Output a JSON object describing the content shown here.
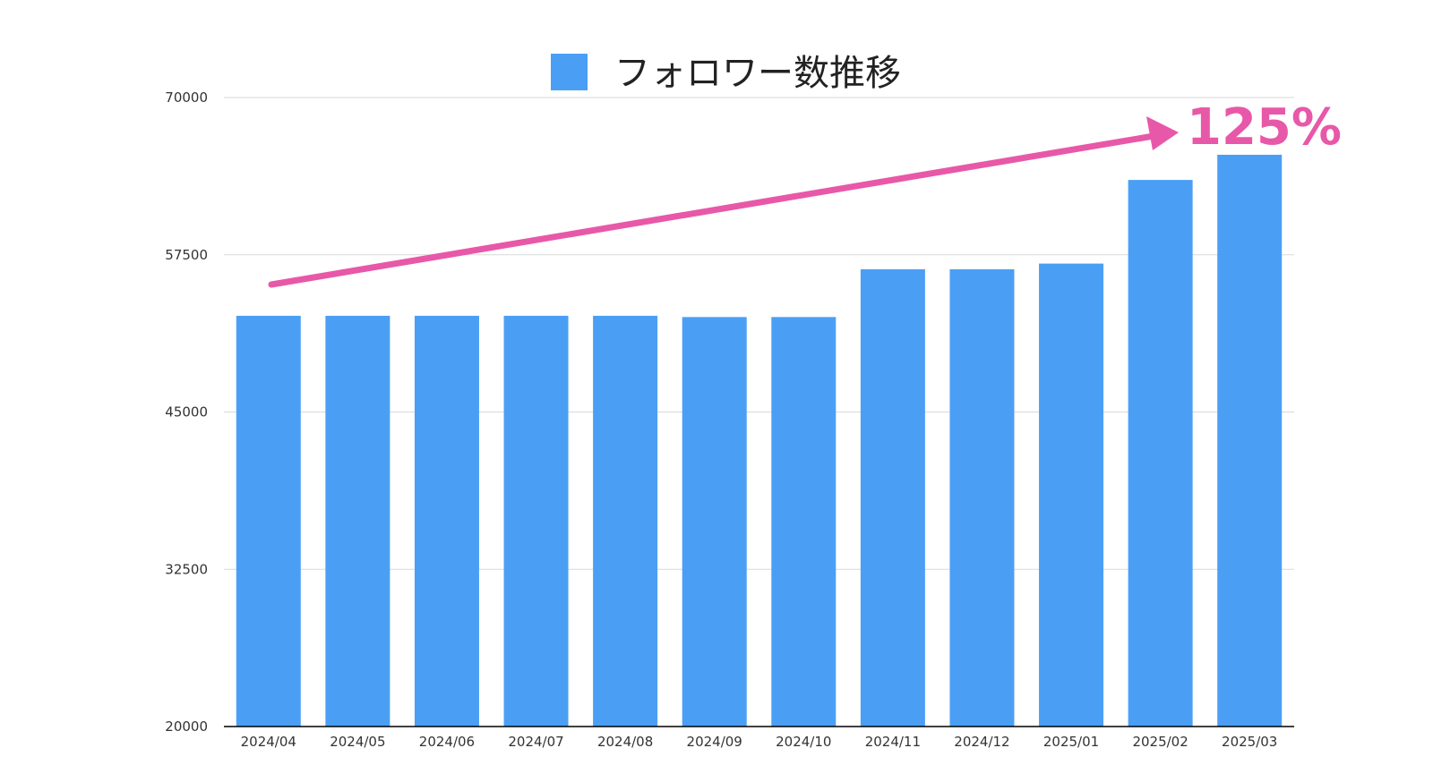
{
  "colors": {
    "bar": "#4a9ff5",
    "arrow": "#e858a8",
    "grid": "#d9d9d9",
    "axis": "#000000"
  },
  "chart_data": {
    "type": "bar",
    "title": "",
    "xlabel": "",
    "ylabel": "",
    "categories": [
      "2024/04",
      "2024/05",
      "2024/06",
      "2024/07",
      "2024/08",
      "2024/09",
      "2024/10",
      "2024/11",
      "2024/12",
      "2025/01",
      "2025/02",
      "2025/03"
    ],
    "series": [
      {
        "name": "フォロワー数推移",
        "values": [
          52650,
          52650,
          52650,
          52650,
          52650,
          52550,
          52550,
          56350,
          56350,
          56800,
          63450,
          65450
        ]
      }
    ],
    "ylim": [
      20000,
      70000
    ],
    "yticks": [
      "20000",
      "32500",
      "45000",
      "57500",
      "70000"
    ],
    "ytick_values": [
      20000,
      32500,
      45000,
      57500,
      70000
    ],
    "grid": true,
    "legend_position": "top-center",
    "annotation": {
      "text": "125%",
      "type": "upward-arrow"
    }
  }
}
